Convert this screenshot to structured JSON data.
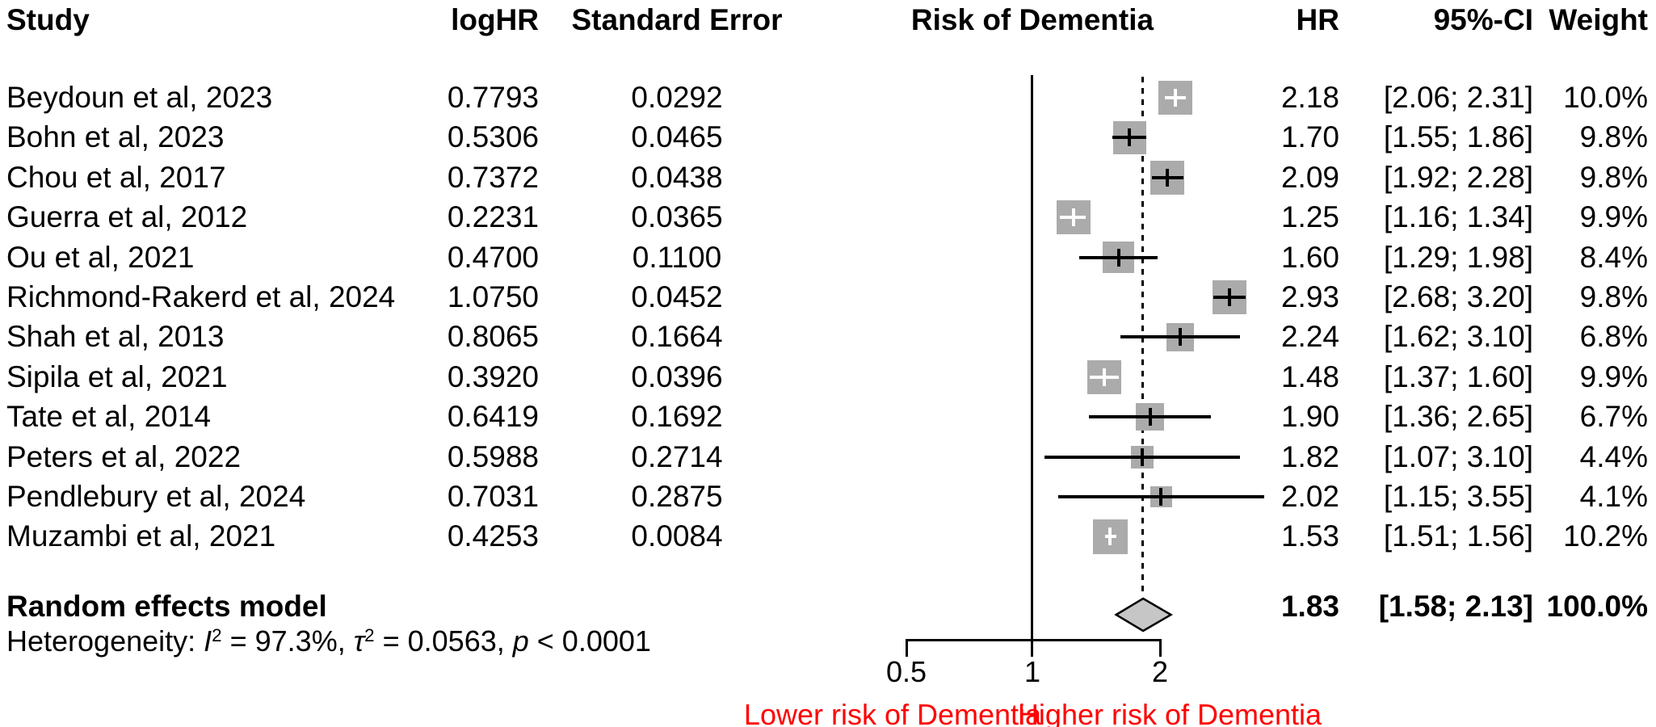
{
  "header": {
    "study": "Study",
    "loghr": "logHR",
    "se": "Standard Error",
    "plot": "Risk of Dementia",
    "hr": "HR",
    "ci": "95%-CI",
    "weight": "Weight"
  },
  "studies": [
    {
      "name": "Beydoun et al, 2023",
      "loghr": "0.7793",
      "se": "0.0292",
      "hr": "2.18",
      "hr_value": 2.18,
      "ci": "[2.06; 2.31]",
      "ci_lo": 2.06,
      "ci_hi": 2.31,
      "weight": "10.0%",
      "weight_value": 10.0,
      "ci_within_square": true
    },
    {
      "name": "Bohn et al, 2023",
      "loghr": "0.5306",
      "se": "0.0465",
      "hr": "1.70",
      "hr_value": 1.7,
      "ci": "[1.55; 1.86]",
      "ci_lo": 1.55,
      "ci_hi": 1.86,
      "weight": "9.8%",
      "weight_value": 9.8,
      "ci_within_square": false
    },
    {
      "name": "Chou et al, 2017",
      "loghr": "0.7372",
      "se": "0.0438",
      "hr": "2.09",
      "hr_value": 2.09,
      "ci": "[1.92; 2.28]",
      "ci_lo": 1.92,
      "ci_hi": 2.28,
      "weight": "9.8%",
      "weight_value": 9.8,
      "ci_within_square": false
    },
    {
      "name": "Guerra et al, 2012",
      "loghr": "0.2231",
      "se": "0.0365",
      "hr": "1.25",
      "hr_value": 1.25,
      "ci": "[1.16; 1.34]",
      "ci_lo": 1.16,
      "ci_hi": 1.34,
      "weight": "9.9%",
      "weight_value": 9.9,
      "ci_within_square": true
    },
    {
      "name": "Ou et al, 2021",
      "loghr": "0.4700",
      "se": "0.1100",
      "hr": "1.60",
      "hr_value": 1.6,
      "ci": "[1.29; 1.98]",
      "ci_lo": 1.29,
      "ci_hi": 1.98,
      "weight": "8.4%",
      "weight_value": 8.4,
      "ci_within_square": false
    },
    {
      "name": "Richmond-Rakerd et al, 2024",
      "loghr": "1.0750",
      "se": "0.0452",
      "hr": "2.93",
      "hr_value": 2.93,
      "ci": "[2.68; 3.20]",
      "ci_lo": 2.68,
      "ci_hi": 3.2,
      "weight": "9.8%",
      "weight_value": 9.8,
      "ci_within_square": false
    },
    {
      "name": "Shah et al, 2013",
      "loghr": "0.8065",
      "se": "0.1664",
      "hr": "2.24",
      "hr_value": 2.24,
      "ci": "[1.62; 3.10]",
      "ci_lo": 1.62,
      "ci_hi": 3.1,
      "weight": "6.8%",
      "weight_value": 6.8,
      "ci_within_square": false
    },
    {
      "name": "Sipila et al, 2021",
      "loghr": "0.3920",
      "se": "0.0396",
      "hr": "1.48",
      "hr_value": 1.48,
      "ci": "[1.37; 1.60]",
      "ci_lo": 1.37,
      "ci_hi": 1.6,
      "weight": "9.9%",
      "weight_value": 9.9,
      "ci_within_square": true
    },
    {
      "name": "Tate et al, 2014",
      "loghr": "0.6419",
      "se": "0.1692",
      "hr": "1.90",
      "hr_value": 1.9,
      "ci": "[1.36; 2.65]",
      "ci_lo": 1.36,
      "ci_hi": 2.65,
      "weight": "6.7%",
      "weight_value": 6.7,
      "ci_within_square": false
    },
    {
      "name": "Peters et al, 2022",
      "loghr": "0.5988",
      "se": "0.2714",
      "hr": "1.82",
      "hr_value": 1.82,
      "ci": "[1.07; 3.10]",
      "ci_lo": 1.07,
      "ci_hi": 3.1,
      "weight": "4.4%",
      "weight_value": 4.4,
      "ci_within_square": false
    },
    {
      "name": "Pendlebury et al, 2024",
      "loghr": "0.7031",
      "se": "0.2875",
      "hr": "2.02",
      "hr_value": 2.02,
      "ci": "[1.15; 3.55]",
      "ci_lo": 1.15,
      "ci_hi": 3.55,
      "weight": "4.1%",
      "weight_value": 4.1,
      "ci_within_square": false
    },
    {
      "name": "Muzambi et al, 2021",
      "loghr": "0.4253",
      "se": "0.0084",
      "hr": "1.53",
      "hr_value": 1.53,
      "ci": "[1.51; 1.56]",
      "ci_lo": 1.51,
      "ci_hi": 1.56,
      "weight": "10.2%",
      "weight_value": 10.2,
      "ci_within_square": true
    }
  ],
  "summary": {
    "label": "Random effects model",
    "hr": "1.83",
    "hr_value": 1.83,
    "ci": "[1.58; 2.13]",
    "ci_lo": 1.58,
    "ci_hi": 2.13,
    "weight": "100.0%"
  },
  "heterogeneity": {
    "segments": [
      {
        "text": "Heterogeneity: "
      },
      {
        "text": "I",
        "italic": true
      },
      {
        "text": "2",
        "sup": true
      },
      {
        "text": " = 97.3%, "
      },
      {
        "text": "τ",
        "italic": true
      },
      {
        "text": "2",
        "sup": true
      },
      {
        "text": " = 0.0563, "
      },
      {
        "text": "p",
        "italic": true
      },
      {
        "text": " < 0.0001"
      }
    ]
  },
  "axis": {
    "ticks": [
      {
        "value": 0.5,
        "label": "0.5"
      },
      {
        "value": 1,
        "label": "1"
      },
      {
        "value": 2,
        "label": "2"
      }
    ],
    "left_label": "Lower risk of Dementia",
    "right_label": "Higher risk of Dementia"
  },
  "colors": {
    "square": "#ababab",
    "diamond_fill": "#c6c6c6",
    "line": "#000000",
    "axis_annotation": "#ff0000",
    "white_marker": "#ffffff"
  },
  "chart_data": {
    "type": "scatter",
    "subtype": "forest-plot-meta-analysis",
    "title": "Risk of Dementia",
    "x_scale": "log",
    "xlim": [
      0.45,
      3.6
    ],
    "x_ticks": [
      0.5,
      1,
      2
    ],
    "reference_line_x": 1,
    "pooled_dashed_line_x": 1.83,
    "grid": false,
    "legend": "none",
    "columns": [
      "Study",
      "logHR",
      "Standard Error",
      "HR",
      "95%-CI",
      "Weight"
    ],
    "series": [
      {
        "name": "Beydoun et al, 2023",
        "logHR": 0.7793,
        "SE": 0.0292,
        "HR": 2.18,
        "ci95": [
          2.06,
          2.31
        ],
        "weight_pct": 10.0
      },
      {
        "name": "Bohn et al, 2023",
        "logHR": 0.5306,
        "SE": 0.0465,
        "HR": 1.7,
        "ci95": [
          1.55,
          1.86
        ],
        "weight_pct": 9.8
      },
      {
        "name": "Chou et al, 2017",
        "logHR": 0.7372,
        "SE": 0.0438,
        "HR": 2.09,
        "ci95": [
          1.92,
          2.28
        ],
        "weight_pct": 9.8
      },
      {
        "name": "Guerra et al, 2012",
        "logHR": 0.2231,
        "SE": 0.0365,
        "HR": 1.25,
        "ci95": [
          1.16,
          1.34
        ],
        "weight_pct": 9.9
      },
      {
        "name": "Ou et al, 2021",
        "logHR": 0.47,
        "SE": 0.11,
        "HR": 1.6,
        "ci95": [
          1.29,
          1.98
        ],
        "weight_pct": 8.4
      },
      {
        "name": "Richmond-Rakerd et al, 2024",
        "logHR": 1.075,
        "SE": 0.0452,
        "HR": 2.93,
        "ci95": [
          2.68,
          3.2
        ],
        "weight_pct": 9.8
      },
      {
        "name": "Shah et al, 2013",
        "logHR": 0.8065,
        "SE": 0.1664,
        "HR": 2.24,
        "ci95": [
          1.62,
          3.1
        ],
        "weight_pct": 6.8
      },
      {
        "name": "Sipila et al, 2021",
        "logHR": 0.392,
        "SE": 0.0396,
        "HR": 1.48,
        "ci95": [
          1.37,
          1.6
        ],
        "weight_pct": 9.9
      },
      {
        "name": "Tate et al, 2014",
        "logHR": 0.6419,
        "SE": 0.1692,
        "HR": 1.9,
        "ci95": [
          1.36,
          2.65
        ],
        "weight_pct": 6.7
      },
      {
        "name": "Peters et al, 2022",
        "logHR": 0.5988,
        "SE": 0.2714,
        "HR": 1.82,
        "ci95": [
          1.07,
          3.1
        ],
        "weight_pct": 4.4
      },
      {
        "name": "Pendlebury et al, 2024",
        "logHR": 0.7031,
        "SE": 0.2875,
        "HR": 2.02,
        "ci95": [
          1.15,
          3.55
        ],
        "weight_pct": 4.1
      },
      {
        "name": "Muzambi et al, 2021",
        "logHR": 0.4253,
        "SE": 0.0084,
        "HR": 1.53,
        "ci95": [
          1.51,
          1.56
        ],
        "weight_pct": 10.2
      }
    ],
    "summary": {
      "name": "Random effects model",
      "HR": 1.83,
      "ci95": [
        1.58,
        2.13
      ],
      "weight_pct": 100.0
    },
    "heterogeneity": {
      "I2": "97.3%",
      "tau2": 0.0563,
      "p": "< 0.0001"
    },
    "x_axis_annotations": [
      {
        "text": "Lower risk of Dementia",
        "color": "#ff0000",
        "side": "left"
      },
      {
        "text": "Higher risk of Dementia",
        "color": "#ff0000",
        "side": "right"
      }
    ]
  }
}
